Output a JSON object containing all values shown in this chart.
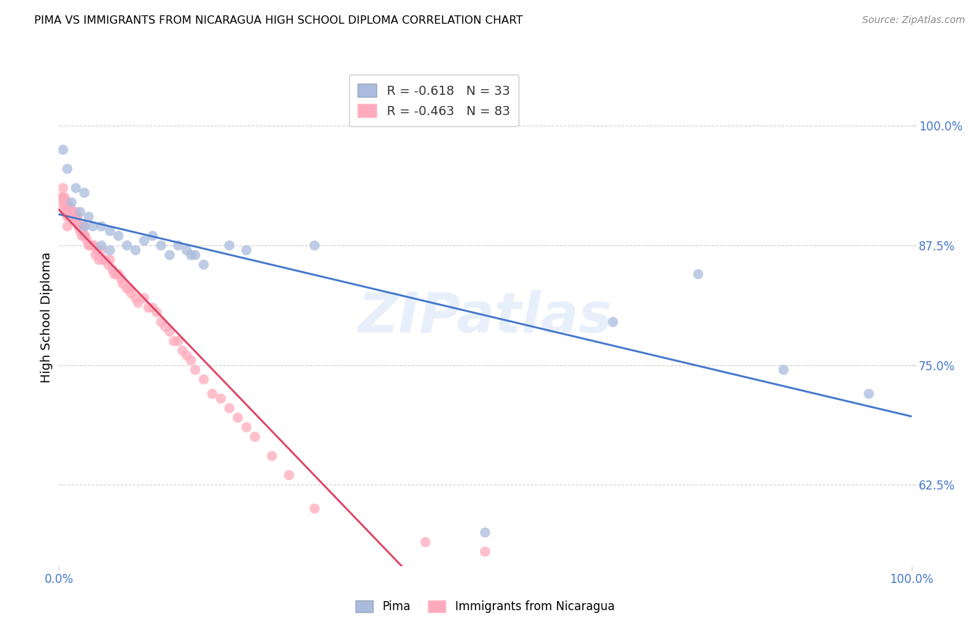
{
  "title": "PIMA VS IMMIGRANTS FROM NICARAGUA HIGH SCHOOL DIPLOMA CORRELATION CHART",
  "source": "Source: ZipAtlas.com",
  "ylabel": "High School Diploma",
  "watermark": "ZIPatlas",
  "legend_blue_r": "-0.618",
  "legend_blue_n": "33",
  "legend_pink_r": "-0.463",
  "legend_pink_n": "83",
  "legend_label_blue": "Pima",
  "legend_label_pink": "Immigrants from Nicaragua",
  "ytick_labels": [
    "62.5%",
    "75.0%",
    "87.5%",
    "100.0%"
  ],
  "ytick_values": [
    0.625,
    0.75,
    0.875,
    1.0
  ],
  "ylim": [
    0.54,
    1.06
  ],
  "xlim": [
    0.0,
    1.0
  ],
  "blue_scatter_color": "#AABBDD",
  "pink_scatter_color": "#FFAABC",
  "blue_line_color": "#4477CC",
  "pink_line_color": "#DD4466",
  "tick_color": "#4477CC",
  "grid_color": "#CCCCCC",
  "background_color": "#FFFFFF",
  "pima_x": [
    0.005,
    0.01,
    0.015,
    0.02,
    0.025,
    0.03,
    0.03,
    0.035,
    0.04,
    0.05,
    0.05,
    0.06,
    0.06,
    0.07,
    0.08,
    0.09,
    0.1,
    0.11,
    0.12,
    0.13,
    0.14,
    0.15,
    0.155,
    0.16,
    0.17,
    0.2,
    0.22,
    0.3,
    0.5,
    0.65,
    0.75,
    0.85,
    0.95
  ],
  "pima_y": [
    0.975,
    0.955,
    0.92,
    0.935,
    0.91,
    0.93,
    0.895,
    0.905,
    0.895,
    0.895,
    0.875,
    0.89,
    0.87,
    0.885,
    0.875,
    0.87,
    0.88,
    0.885,
    0.875,
    0.865,
    0.875,
    0.87,
    0.865,
    0.865,
    0.855,
    0.875,
    0.87,
    0.875,
    0.575,
    0.795,
    0.845,
    0.745,
    0.72
  ],
  "nicaragua_x": [
    0.003,
    0.003,
    0.004,
    0.005,
    0.005,
    0.006,
    0.007,
    0.008,
    0.009,
    0.01,
    0.01,
    0.01,
    0.01,
    0.012,
    0.013,
    0.014,
    0.015,
    0.016,
    0.017,
    0.018,
    0.019,
    0.02,
    0.02,
    0.021,
    0.022,
    0.023,
    0.024,
    0.025,
    0.026,
    0.027,
    0.028,
    0.03,
    0.03,
    0.031,
    0.033,
    0.035,
    0.037,
    0.04,
    0.041,
    0.043,
    0.045,
    0.047,
    0.05,
    0.052,
    0.055,
    0.058,
    0.06,
    0.063,
    0.065,
    0.068,
    0.07,
    0.073,
    0.075,
    0.08,
    0.083,
    0.085,
    0.09,
    0.093,
    0.1,
    0.105,
    0.11,
    0.115,
    0.12,
    0.125,
    0.13,
    0.135,
    0.14,
    0.145,
    0.15,
    0.155,
    0.16,
    0.17,
    0.18,
    0.19,
    0.2,
    0.21,
    0.22,
    0.23,
    0.25,
    0.27,
    0.3,
    0.43,
    0.5
  ],
  "nicaragua_y": [
    0.915,
    0.925,
    0.925,
    0.925,
    0.935,
    0.92,
    0.925,
    0.91,
    0.915,
    0.92,
    0.915,
    0.905,
    0.895,
    0.91,
    0.915,
    0.91,
    0.905,
    0.91,
    0.905,
    0.9,
    0.9,
    0.91,
    0.905,
    0.9,
    0.905,
    0.895,
    0.895,
    0.89,
    0.895,
    0.885,
    0.89,
    0.895,
    0.885,
    0.885,
    0.88,
    0.875,
    0.875,
    0.875,
    0.875,
    0.865,
    0.87,
    0.86,
    0.87,
    0.86,
    0.86,
    0.855,
    0.86,
    0.85,
    0.845,
    0.845,
    0.845,
    0.84,
    0.835,
    0.83,
    0.83,
    0.825,
    0.82,
    0.815,
    0.82,
    0.81,
    0.81,
    0.805,
    0.795,
    0.79,
    0.785,
    0.775,
    0.775,
    0.765,
    0.76,
    0.755,
    0.745,
    0.735,
    0.72,
    0.715,
    0.705,
    0.695,
    0.685,
    0.675,
    0.655,
    0.635,
    0.6,
    0.565,
    0.555
  ]
}
